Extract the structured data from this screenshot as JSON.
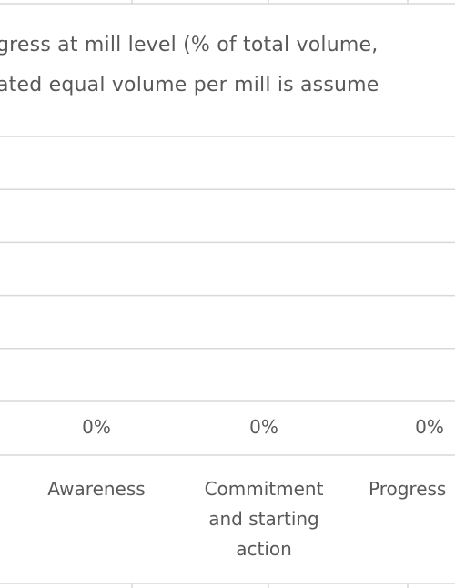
{
  "chart_data": {
    "type": "bar",
    "title_lines": [
      "gress at mill level (% of total volume,",
      "ated equal volume per mill is assume"
    ],
    "categories": [
      [
        "Awareness"
      ],
      [
        "Commitment",
        "and starting",
        "action"
      ],
      [
        "Progress"
      ]
    ],
    "values": [
      0,
      0,
      0
    ],
    "data_labels": [
      "0%",
      "0%",
      "0%"
    ],
    "ylim": [
      0,
      1
    ],
    "grid": true,
    "legend": "none"
  },
  "colors": {
    "gridline": "#d9d9d9",
    "text": "#595959",
    "bar": "#4472c4",
    "background": "#ffffff"
  }
}
